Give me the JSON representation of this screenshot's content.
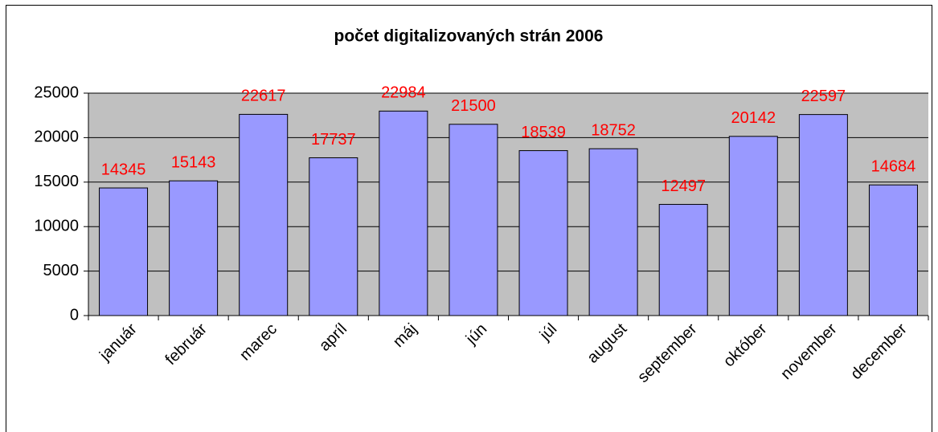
{
  "chart_data": {
    "type": "bar",
    "title": "počet digitalizovaných strán 2006",
    "categories": [
      "január",
      "február",
      "marec",
      "apríl",
      "máj",
      "jún",
      "júl",
      "august",
      "september",
      "október",
      "november",
      "december"
    ],
    "values": [
      14345,
      15143,
      22617,
      17737,
      22984,
      21500,
      18539,
      18752,
      12497,
      20142,
      22597,
      14684
    ],
    "color": "#9999ff",
    "label_color": "#ff0000",
    "plot_background": "#c0c0c0",
    "ylim": [
      0,
      25000
    ],
    "yticks": [
      0,
      5000,
      10000,
      15000,
      20000,
      25000
    ],
    "grid": true
  }
}
